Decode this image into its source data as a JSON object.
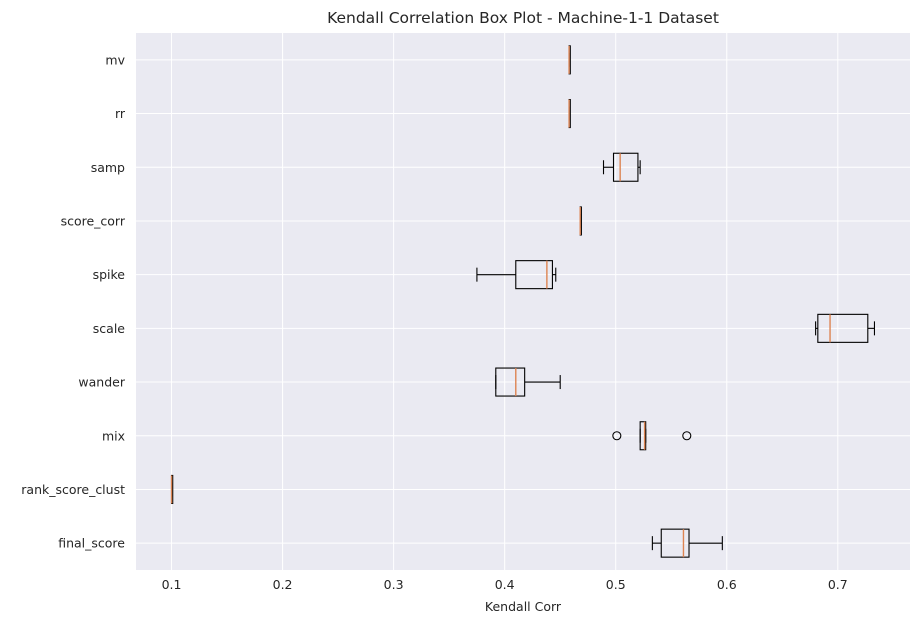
{
  "chart_data": {
    "type": "boxplot",
    "orientation": "horizontal",
    "title": "Kendall Correlation Box Plot - Machine-1-1 Dataset",
    "xlabel": "Kendall Corr",
    "ylabel": "",
    "xlim": [
      0.068,
      0.765
    ],
    "xticks": [
      0.1,
      0.2,
      0.3,
      0.4,
      0.5,
      0.6,
      0.7
    ],
    "xtick_labels": [
      "0.1",
      "0.2",
      "0.3",
      "0.4",
      "0.5",
      "0.6",
      "0.7"
    ],
    "grid": true,
    "background": "#eaeaf2",
    "box_color": "#000000",
    "median_color": "#dd8452",
    "categories": [
      "mv",
      "rr",
      "samp",
      "score_corr",
      "spike",
      "scale",
      "wander",
      "mix",
      "rank_score_clust",
      "final_score"
    ],
    "boxes": [
      {
        "label": "mv",
        "whislo": 0.458,
        "q1": 0.458,
        "med": 0.458,
        "q3": 0.458,
        "whishi": 0.458,
        "fliers": []
      },
      {
        "label": "rr",
        "whislo": 0.458,
        "q1": 0.458,
        "med": 0.458,
        "q3": 0.458,
        "whishi": 0.458,
        "fliers": []
      },
      {
        "label": "samp",
        "whislo": 0.489,
        "q1": 0.498,
        "med": 0.504,
        "q3": 0.52,
        "whishi": 0.522,
        "fliers": []
      },
      {
        "label": "score_corr",
        "whislo": 0.468,
        "q1": 0.468,
        "med": 0.468,
        "q3": 0.468,
        "whishi": 0.468,
        "fliers": []
      },
      {
        "label": "spike",
        "whislo": 0.375,
        "q1": 0.41,
        "med": 0.438,
        "q3": 0.443,
        "whishi": 0.446,
        "fliers": []
      },
      {
        "label": "scale",
        "whislo": 0.68,
        "q1": 0.682,
        "med": 0.693,
        "q3": 0.727,
        "whishi": 0.733,
        "fliers": []
      },
      {
        "label": "wander",
        "whislo": 0.392,
        "q1": 0.392,
        "med": 0.41,
        "q3": 0.418,
        "whishi": 0.45,
        "fliers": []
      },
      {
        "label": "mix",
        "whislo": 0.522,
        "q1": 0.522,
        "med": 0.526,
        "q3": 0.527,
        "whishi": 0.527,
        "fliers": [
          0.501,
          0.564
        ]
      },
      {
        "label": "rank_score_clust",
        "whislo": 0.1,
        "q1": 0.1,
        "med": 0.1,
        "q3": 0.1,
        "whishi": 0.1,
        "fliers": []
      },
      {
        "label": "final_score",
        "whislo": 0.533,
        "q1": 0.541,
        "med": 0.561,
        "q3": 0.566,
        "whishi": 0.596,
        "fliers": []
      }
    ]
  }
}
